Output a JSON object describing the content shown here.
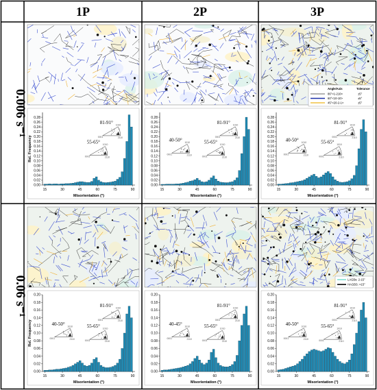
{
  "figure": {
    "column_headers": [
      "1P",
      "2P",
      "3P"
    ],
    "row_labels": [
      "0.006 s⁻¹",
      "0.06 s⁻¹"
    ]
  },
  "legend_boundaries": {
    "header": [
      "Angle/Axis",
      "Tolerance"
    ],
    "rows": [
      {
        "label": "86°<1-210>",
        "tol": "±5°",
        "color": "#9a9a9a"
      },
      {
        "label": "60°<10-10>",
        "tol": "±5°",
        "color": "#1a2fa8"
      },
      {
        "label": "45°<20-2-1>",
        "tol": "±5°",
        "color": "#f0c040"
      }
    ]
  },
  "legend_gb": [
    {
      "label": "LAGBs: 2-15°",
      "color": "#7fe0d0"
    },
    {
      "label": "HAGBS: >15°",
      "color": "#000000"
    }
  ],
  "pole_labels": {
    "a": "1010",
    "b": "0001",
    "c": "2110"
  },
  "chart_data": [
    {
      "type": "bar",
      "panel": "0.006 s⁻¹ / 1P",
      "xlabel": "Misorientation (°)",
      "ylabel": "Rel. Frequency",
      "xlim": [
        13,
        92
      ],
      "ylim": [
        0,
        0.3
      ],
      "xticks": [
        15,
        30,
        45,
        60,
        75,
        90
      ],
      "yticks": [
        0.0,
        0.02,
        0.04,
        0.06,
        0.08,
        0.1,
        0.12,
        0.14,
        0.16,
        0.18,
        0.2,
        0.22,
        0.24,
        0.26,
        0.28
      ],
      "annotations": [
        "81-91°",
        "55-65°"
      ],
      "x": [
        15,
        17,
        19,
        21,
        23,
        25,
        27,
        29,
        31,
        33,
        35,
        37,
        39,
        41,
        43,
        45,
        47,
        49,
        51,
        53,
        55,
        57,
        59,
        61,
        63,
        65,
        67,
        69,
        71,
        73,
        75,
        77,
        79,
        81,
        83,
        85,
        87,
        89
      ],
      "values": [
        0.004,
        0.004,
        0.005,
        0.004,
        0.005,
        0.005,
        0.004,
        0.005,
        0.005,
        0.006,
        0.006,
        0.007,
        0.008,
        0.01,
        0.012,
        0.014,
        0.014,
        0.012,
        0.011,
        0.011,
        0.015,
        0.028,
        0.034,
        0.02,
        0.014,
        0.011,
        0.01,
        0.011,
        0.012,
        0.014,
        0.016,
        0.024,
        0.032,
        0.055,
        0.11,
        0.18,
        0.29,
        0.24
      ]
    },
    {
      "type": "bar",
      "panel": "0.006 s⁻¹ / 2P",
      "xlabel": "Misorientation (°)",
      "ylabel": "",
      "xlim": [
        13,
        92
      ],
      "ylim": [
        0,
        0.3
      ],
      "xticks": [
        15,
        30,
        45,
        60,
        75,
        90
      ],
      "yticks": [
        0.0,
        0.02,
        0.04,
        0.06,
        0.08,
        0.1,
        0.12,
        0.14,
        0.16,
        0.18,
        0.2,
        0.22,
        0.24,
        0.26,
        0.28
      ],
      "annotations": [
        "81-91°",
        "40-50°",
        "55-65°"
      ],
      "x": [
        15,
        17,
        19,
        21,
        23,
        25,
        27,
        29,
        31,
        33,
        35,
        37,
        39,
        41,
        43,
        45,
        47,
        49,
        51,
        53,
        55,
        57,
        59,
        61,
        63,
        65,
        67,
        69,
        71,
        73,
        75,
        77,
        79,
        81,
        83,
        85,
        87,
        89
      ],
      "values": [
        0.003,
        0.003,
        0.004,
        0.004,
        0.004,
        0.004,
        0.005,
        0.005,
        0.006,
        0.008,
        0.01,
        0.012,
        0.016,
        0.018,
        0.022,
        0.028,
        0.02,
        0.014,
        0.012,
        0.014,
        0.02,
        0.03,
        0.038,
        0.025,
        0.016,
        0.012,
        0.011,
        0.01,
        0.01,
        0.012,
        0.014,
        0.02,
        0.03,
        0.06,
        0.13,
        0.2,
        0.28,
        0.23
      ]
    },
    {
      "type": "bar",
      "panel": "0.006 s⁻¹ / 3P",
      "xlabel": "Misorientation (°)",
      "ylabel": "",
      "xlim": [
        13,
        92
      ],
      "ylim": [
        0,
        0.3
      ],
      "xticks": [
        15,
        30,
        45,
        60,
        75,
        90
      ],
      "yticks": [
        0.0,
        0.02,
        0.04,
        0.06,
        0.08,
        0.1,
        0.12,
        0.14,
        0.16,
        0.18,
        0.2,
        0.22,
        0.24,
        0.26,
        0.28
      ],
      "annotations": [
        "81-91°",
        "40-50°",
        "55-65°"
      ],
      "x": [
        15,
        17,
        19,
        21,
        23,
        25,
        27,
        29,
        31,
        33,
        35,
        37,
        39,
        41,
        43,
        45,
        47,
        49,
        51,
        53,
        55,
        57,
        59,
        61,
        63,
        65,
        67,
        69,
        71,
        73,
        75,
        77,
        79,
        81,
        83,
        85,
        87,
        89
      ],
      "values": [
        0.004,
        0.004,
        0.005,
        0.006,
        0.007,
        0.009,
        0.01,
        0.012,
        0.014,
        0.016,
        0.018,
        0.022,
        0.028,
        0.034,
        0.04,
        0.045,
        0.036,
        0.03,
        0.034,
        0.042,
        0.05,
        0.056,
        0.048,
        0.034,
        0.022,
        0.016,
        0.012,
        0.011,
        0.012,
        0.014,
        0.018,
        0.026,
        0.04,
        0.08,
        0.15,
        0.23,
        0.27,
        0.22
      ]
    },
    {
      "type": "bar",
      "panel": "0.06 s⁻¹ / 1P",
      "xlabel": "Misorientation (°)",
      "ylabel": "Rel. Frequency",
      "xlim": [
        13,
        92
      ],
      "ylim": [
        0,
        0.2
      ],
      "xticks": [
        15,
        30,
        45,
        60,
        75,
        90
      ],
      "yticks": [
        0.0,
        0.02,
        0.04,
        0.06,
        0.08,
        0.1,
        0.12,
        0.14,
        0.16,
        0.18,
        0.2
      ],
      "annotations": [
        "81-91°",
        "40-50°",
        "55-65°"
      ],
      "x": [
        15,
        17,
        19,
        21,
        23,
        25,
        27,
        29,
        31,
        33,
        35,
        37,
        39,
        41,
        43,
        45,
        47,
        49,
        51,
        53,
        55,
        57,
        59,
        61,
        63,
        65,
        67,
        69,
        71,
        73,
        75,
        77,
        79,
        81,
        83,
        85,
        87,
        89
      ],
      "values": [
        0.003,
        0.003,
        0.004,
        0.004,
        0.005,
        0.006,
        0.006,
        0.007,
        0.008,
        0.009,
        0.011,
        0.013,
        0.016,
        0.02,
        0.024,
        0.028,
        0.022,
        0.016,
        0.014,
        0.016,
        0.022,
        0.032,
        0.036,
        0.024,
        0.016,
        0.012,
        0.01,
        0.01,
        0.011,
        0.013,
        0.016,
        0.022,
        0.032,
        0.06,
        0.1,
        0.15,
        0.17,
        0.14
      ]
    },
    {
      "type": "bar",
      "panel": "0.06 s⁻¹ / 2P",
      "xlabel": "Misorientation (°)",
      "ylabel": "",
      "xlim": [
        13,
        92
      ],
      "ylim": [
        0,
        0.2
      ],
      "xticks": [
        15,
        30,
        45,
        60,
        75,
        90
      ],
      "yticks": [
        0.0,
        0.02,
        0.04,
        0.06,
        0.08,
        0.1,
        0.12,
        0.14,
        0.16,
        0.18,
        0.2
      ],
      "annotations": [
        "81-91°",
        "40-45°",
        "55-65°"
      ],
      "x": [
        15,
        17,
        19,
        21,
        23,
        25,
        27,
        29,
        31,
        33,
        35,
        37,
        39,
        41,
        43,
        45,
        47,
        49,
        51,
        53,
        55,
        57,
        59,
        61,
        63,
        65,
        67,
        69,
        71,
        73,
        75,
        77,
        79,
        81,
        83,
        85,
        87,
        89
      ],
      "values": [
        0.003,
        0.004,
        0.004,
        0.005,
        0.006,
        0.007,
        0.008,
        0.009,
        0.01,
        0.012,
        0.014,
        0.016,
        0.02,
        0.026,
        0.034,
        0.04,
        0.03,
        0.022,
        0.018,
        0.022,
        0.03,
        0.05,
        0.058,
        0.036,
        0.022,
        0.016,
        0.013,
        0.012,
        0.012,
        0.014,
        0.018,
        0.026,
        0.042,
        0.08,
        0.12,
        0.15,
        0.17,
        0.12
      ]
    },
    {
      "type": "bar",
      "panel": "0.06 s⁻¹ / 3P",
      "xlabel": "Misorientation (°)",
      "ylabel": "",
      "xlim": [
        13,
        92
      ],
      "ylim": [
        0,
        0.2
      ],
      "xticks": [
        15,
        30,
        45,
        60,
        75,
        90
      ],
      "yticks": [
        0.0,
        0.02,
        0.04,
        0.06,
        0.08,
        0.1,
        0.12,
        0.14,
        0.16,
        0.18,
        0.2
      ],
      "annotations": [
        "81-91°",
        "40-50°",
        "55-65°"
      ],
      "x": [
        15,
        17,
        19,
        21,
        23,
        25,
        27,
        29,
        31,
        33,
        35,
        37,
        39,
        41,
        43,
        45,
        47,
        49,
        51,
        53,
        55,
        57,
        59,
        61,
        63,
        65,
        67,
        69,
        71,
        73,
        75,
        77,
        79,
        81,
        83,
        85,
        87,
        89
      ],
      "values": [
        0.004,
        0.005,
        0.006,
        0.008,
        0.01,
        0.012,
        0.014,
        0.016,
        0.02,
        0.026,
        0.032,
        0.04,
        0.046,
        0.052,
        0.056,
        0.058,
        0.056,
        0.054,
        0.052,
        0.054,
        0.058,
        0.062,
        0.06,
        0.05,
        0.04,
        0.032,
        0.026,
        0.022,
        0.02,
        0.024,
        0.03,
        0.046,
        0.07,
        0.1,
        0.13,
        0.16,
        0.18,
        0.14
      ]
    }
  ]
}
